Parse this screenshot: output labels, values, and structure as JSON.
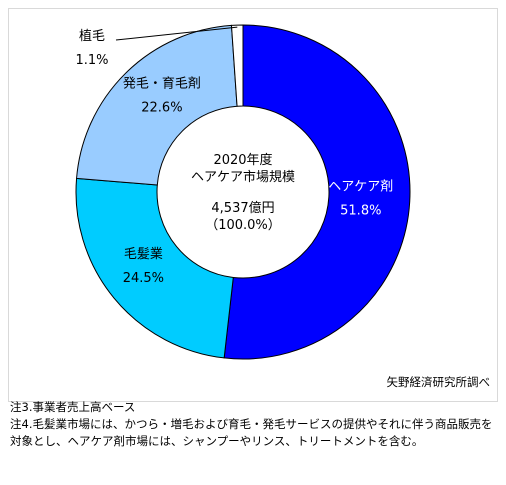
{
  "chart_data": {
    "type": "pie",
    "style": "donut",
    "center_label": {
      "title_line1": "2020年度",
      "title_line2": "ヘアケア市場規模",
      "total_line1": "4,537億円",
      "total_line2": "（100.0%）"
    },
    "slices": [
      {
        "name": "ヘアケア剤",
        "value": 51.8,
        "value_label": "51.8%",
        "color": "#0000ff",
        "label_color": "#ffffff"
      },
      {
        "name": "毛髪業",
        "value": 24.5,
        "value_label": "24.5%",
        "color": "#00ccff",
        "label_color": "#000000"
      },
      {
        "name": "発毛・育毛剤",
        "value": 22.6,
        "value_label": "22.6%",
        "color": "#99ccff",
        "label_color": "#000000"
      },
      {
        "name": "植毛",
        "value": 1.1,
        "value_label": "1.1%",
        "color": "#ffffff",
        "label_color": "#000000"
      }
    ]
  },
  "source": "矢野経済研究所調べ",
  "notes": {
    "note3": "注3.事業者売上高ベース",
    "note4": "注4.毛髪業市場には、かつら・増毛および育毛・発毛サービスの提供やそれに伴う商品販売を対象とし、ヘアケア剤市場には、シャンプーやリンス、トリートメントを含む。"
  }
}
